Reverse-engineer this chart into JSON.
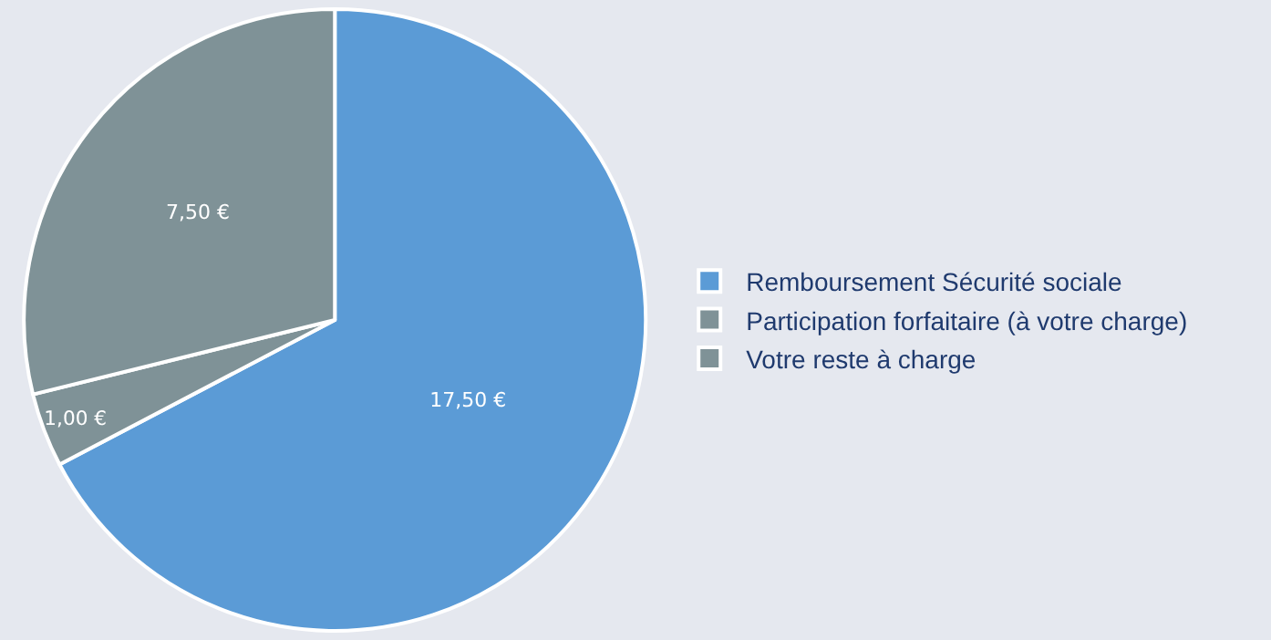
{
  "chart_data": {
    "type": "pie",
    "categories": [
      "Remboursement Sécurité sociale",
      "Participation forfaitaire (à votre charge)",
      "Votre reste à charge"
    ],
    "values": [
      17.5,
      1.0,
      7.5
    ],
    "value_labels": [
      "17,50 €",
      "1,00 €",
      "7,50 €"
    ],
    "colors": [
      "#5b9bd6",
      "#7f9297",
      "#7f9297"
    ],
    "legend": "right"
  }
}
